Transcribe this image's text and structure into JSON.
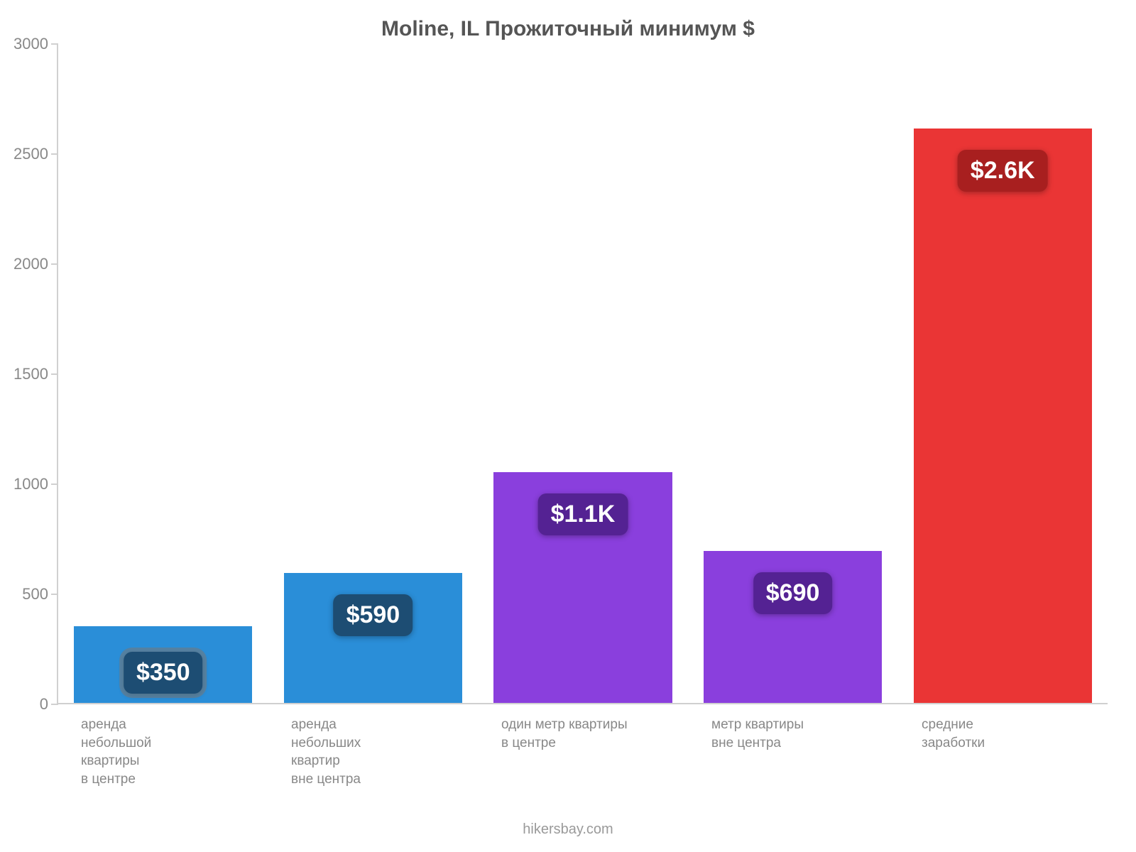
{
  "chart": {
    "type": "bar",
    "title": "Moline, IL Прожиточный минимум $",
    "title_fontsize": 30,
    "title_color": "#555555",
    "background_color": "#ffffff",
    "axis_color": "#d0d0d0",
    "ylim": [
      0,
      3000
    ],
    "ytick_step": 500,
    "yticks": [
      0,
      500,
      1000,
      1500,
      2000,
      2500,
      3000
    ],
    "tick_label_color": "#888888",
    "tick_label_fontsize": 22,
    "x_label_fontsize": 19,
    "x_label_color": "#888888",
    "value_label_fontsize": 34,
    "value_label_color": "#ffffff",
    "bar_width_ratio": 0.85,
    "attribution": "hikersbay.com",
    "attribution_color": "#9a9a9a",
    "bars": [
      {
        "category": "аренда\nнебольшой\nквартиры\nв центре",
        "value": 350,
        "display": "$350",
        "color": "#2a8ed8",
        "badge_color": "#1d4d73",
        "badge_halo": true
      },
      {
        "category": "аренда\nнебольших\nквартир\nвне центра",
        "value": 590,
        "display": "$590",
        "color": "#2a8ed8",
        "badge_color": "#1d4d73",
        "badge_halo": false
      },
      {
        "category": "один метр квартиры\nв центре",
        "value": 1050,
        "display": "$1.1K",
        "color": "#8a3fdd",
        "badge_color": "#542293",
        "badge_halo": false
      },
      {
        "category": "метр квартиры\nвне центра",
        "value": 690,
        "display": "$690",
        "color": "#8a3fdd",
        "badge_color": "#542293",
        "badge_halo": false
      },
      {
        "category": "средние\nзаработки",
        "value": 2610,
        "display": "$2.6K",
        "color": "#ea3535",
        "badge_color": "#a81f1f",
        "badge_halo": false
      }
    ]
  }
}
